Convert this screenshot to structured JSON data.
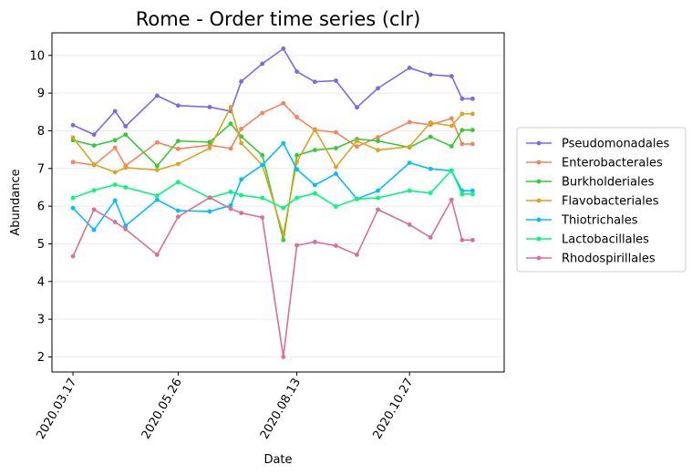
{
  "chart_data": {
    "type": "line",
    "title": "Rome - Order time series (clr)",
    "xlabel": "Date",
    "ylabel": "Abundance",
    "ylim": [
      1.6,
      10.6
    ],
    "yticks": [
      2,
      3,
      4,
      5,
      6,
      7,
      8,
      9,
      10
    ],
    "xlim": [
      "2020-03-03",
      "2020-12-29"
    ],
    "xticks": [
      {
        "date": "2020-03-17",
        "label": "2020.03.17"
      },
      {
        "date": "2020-05-26",
        "label": "2020.05.26"
      },
      {
        "date": "2020-08-13",
        "label": "2020.08.13"
      },
      {
        "date": "2020-10-27",
        "label": "2020.10.27"
      }
    ],
    "grid": "horizontal",
    "legend_position": "right",
    "x": [
      "2020-03-17",
      "2020-03-31",
      "2020-04-14",
      "2020-04-21",
      "2020-05-12",
      "2020-05-26",
      "2020-06-16",
      "2020-06-30",
      "2020-07-07",
      "2020-07-21",
      "2020-08-04",
      "2020-08-13",
      "2020-08-25",
      "2020-09-08",
      "2020-09-22",
      "2020-10-06",
      "2020-10-27",
      "2020-11-10",
      "2020-11-24",
      "2020-12-01",
      "2020-12-08"
    ],
    "series": [
      {
        "name": "Pseudomonadales",
        "color": "#7b68ee",
        "values": [
          8.15,
          7.9,
          8.52,
          8.12,
          8.93,
          8.67,
          8.63,
          8.52,
          9.31,
          9.78,
          10.18,
          9.57,
          9.3,
          9.33,
          8.62,
          9.13,
          9.67,
          9.49,
          9.45,
          8.85,
          8.85
        ]
      },
      {
        "name": "Enterobacterales",
        "color": "#fa8258",
        "values": [
          7.17,
          7.09,
          7.55,
          7.07,
          7.69,
          7.52,
          7.62,
          7.53,
          8.05,
          8.47,
          8.73,
          8.36,
          8.02,
          7.96,
          7.58,
          7.83,
          8.23,
          8.16,
          8.33,
          7.65,
          7.65
        ]
      },
      {
        "name": "Burkholderiales",
        "color": "#32cd32",
        "values": [
          7.75,
          7.61,
          7.75,
          7.9,
          7.07,
          7.73,
          7.7,
          8.19,
          7.85,
          7.35,
          5.1,
          7.35,
          7.49,
          7.54,
          7.78,
          7.73,
          7.56,
          7.84,
          7.59,
          8.02,
          8.02
        ]
      },
      {
        "name": "Flavobacteriales",
        "color": "#daa520",
        "values": [
          7.82,
          7.11,
          6.9,
          7.02,
          6.96,
          7.12,
          7.54,
          8.63,
          7.67,
          7.09,
          5.25,
          7.17,
          8.04,
          7.04,
          7.73,
          7.49,
          7.58,
          8.22,
          8.13,
          8.45,
          8.45
        ]
      },
      {
        "name": "Thiotrichales",
        "color": "#00bfff",
        "values": [
          5.95,
          5.37,
          6.15,
          5.48,
          6.17,
          5.88,
          5.86,
          6.02,
          6.71,
          7.09,
          7.67,
          6.98,
          6.56,
          6.86,
          6.19,
          6.41,
          7.15,
          6.99,
          6.94,
          6.41,
          6.41
        ]
      },
      {
        "name": "Lactobacillales",
        "color": "#00fa7a",
        "values": [
          6.22,
          6.42,
          6.57,
          6.5,
          6.28,
          6.64,
          6.22,
          6.38,
          6.29,
          6.22,
          5.95,
          6.22,
          6.34,
          5.99,
          6.19,
          6.22,
          6.41,
          6.35,
          6.95,
          6.32,
          6.32
        ]
      },
      {
        "name": "Rhodospirillales",
        "color": "#db7093",
        "values": [
          4.67,
          5.91,
          5.58,
          5.39,
          4.71,
          5.72,
          6.23,
          5.93,
          5.82,
          5.7,
          2.0,
          4.96,
          5.05,
          4.95,
          4.71,
          5.91,
          5.51,
          5.17,
          6.17,
          5.1,
          5.1
        ]
      }
    ]
  }
}
